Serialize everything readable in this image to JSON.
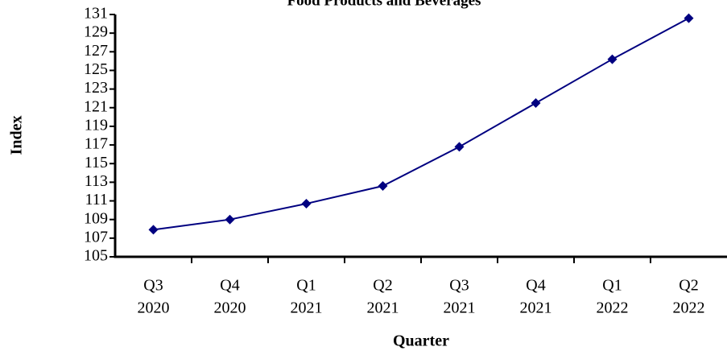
{
  "chart_data": {
    "type": "line",
    "title": "Food Products and Beverages",
    "x_label": "Quarter",
    "y_label": "Index",
    "categories": [
      [
        "Q3",
        "2020"
      ],
      [
        "Q4",
        "2020"
      ],
      [
        "Q1",
        "2021"
      ],
      [
        "Q2",
        "2021"
      ],
      [
        "Q3",
        "2021"
      ],
      [
        "Q4",
        "2021"
      ],
      [
        "Q1",
        "2022"
      ],
      [
        "Q2",
        "2022"
      ]
    ],
    "series": [
      {
        "name": "Index",
        "color": "#000080",
        "values": [
          107.9,
          109.0,
          110.7,
          112.6,
          116.8,
          121.5,
          126.2,
          130.6
        ]
      }
    ],
    "ylim": [
      105,
      131
    ],
    "yticks": [
      105,
      107,
      109,
      111,
      113,
      115,
      117,
      119,
      121,
      123,
      125,
      127,
      129,
      131
    ],
    "grid": false
  }
}
